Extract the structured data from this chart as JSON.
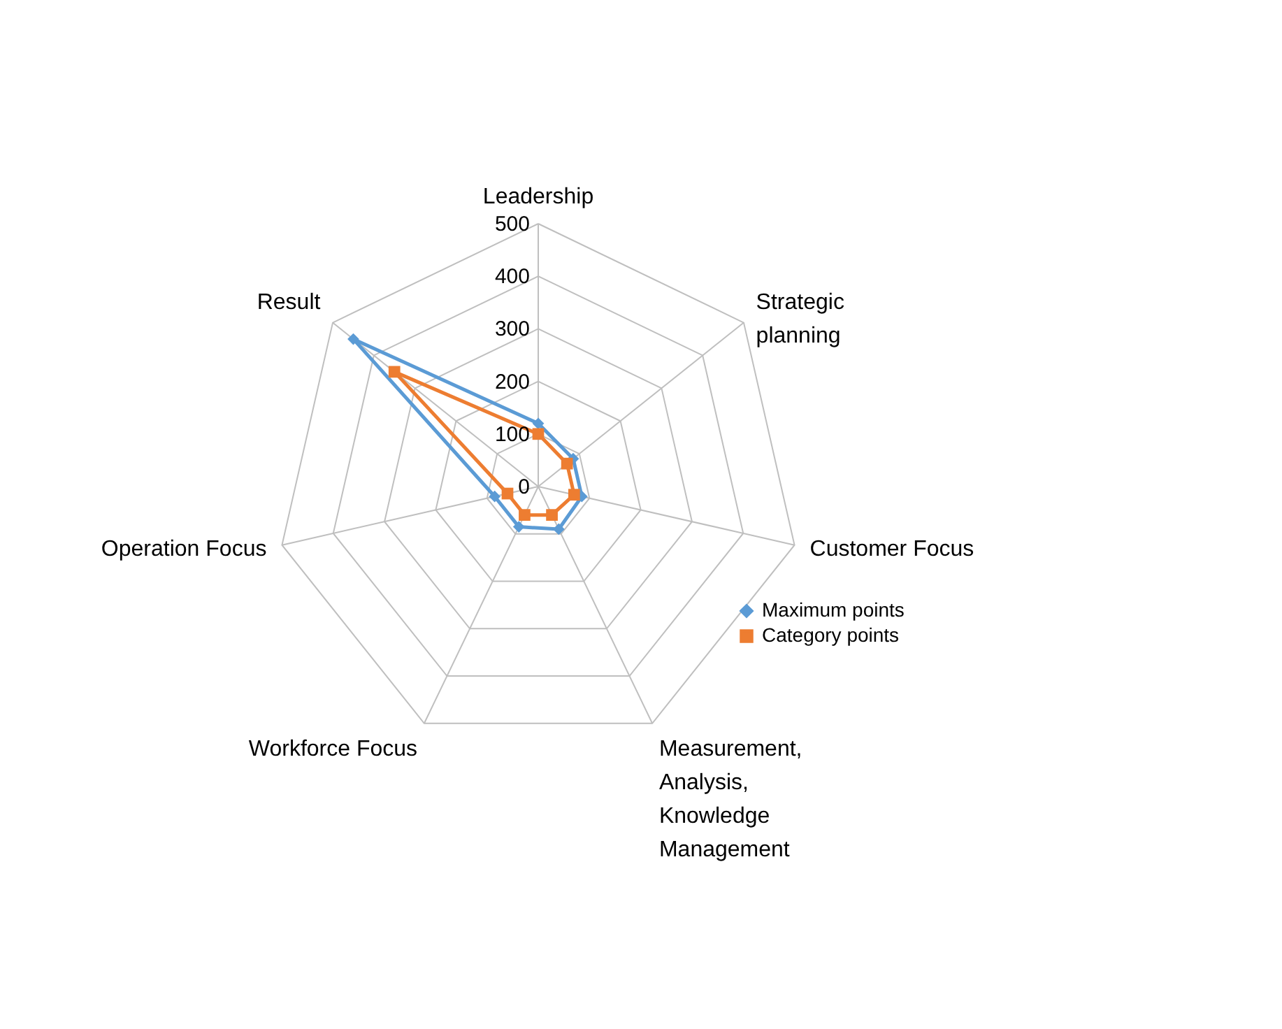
{
  "chart_data": {
    "type": "radar",
    "categories": [
      "Leadership",
      "Strategic planning",
      "Customer Focus",
      "Measurement, Analysis, Knowledge Management",
      "Workforce Focus",
      "Operation Focus",
      "Result"
    ],
    "series": [
      {
        "name": "Maximum points",
        "color": "#5b9bd5",
        "marker": "diamond",
        "values": [
          120,
          85,
          85,
          90,
          85,
          85,
          450
        ]
      },
      {
        "name": "Category points",
        "color": "#ed7d31",
        "marker": "square",
        "values": [
          100,
          70,
          70,
          60,
          60,
          60,
          350
        ]
      }
    ],
    "ylim": [
      0,
      500
    ],
    "yticks": [
      0,
      100,
      200,
      300,
      400,
      500
    ],
    "grid": true,
    "legend": "right"
  }
}
